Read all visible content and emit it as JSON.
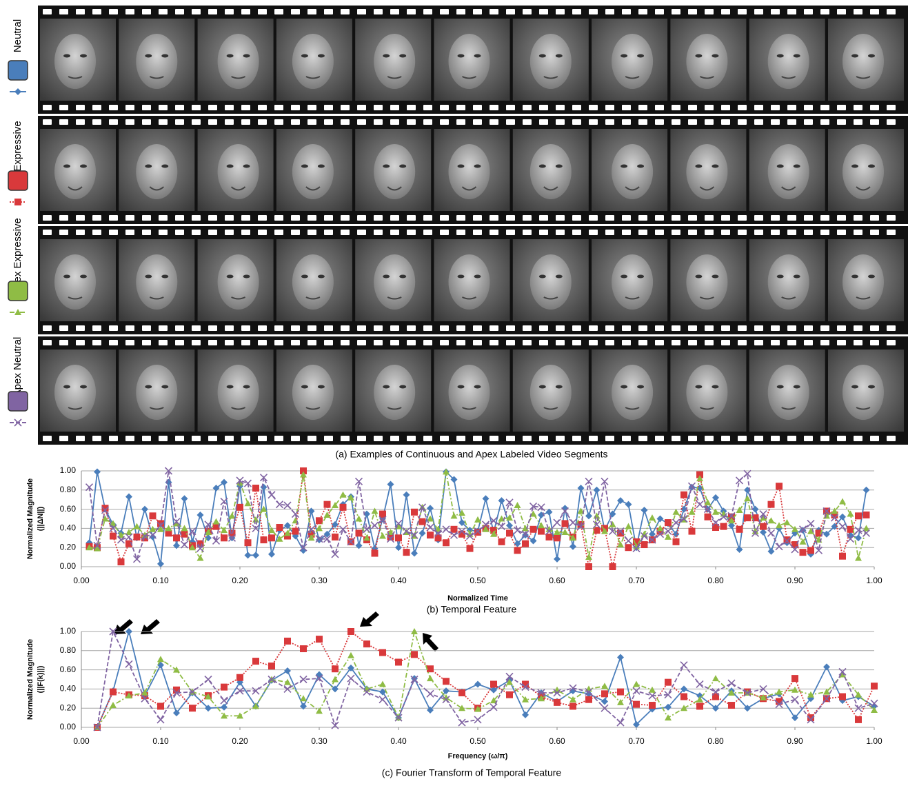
{
  "film_strip": {
    "caption": "(a) Examples of Continuous and Apex Labeled Video Segments"
  },
  "chart_data": [
    {
      "type": "line",
      "caption": "(b) Temporal Feature",
      "xlabel": "Normalized Time",
      "ylabel": "Normalized Magnitude",
      "ylabel2": "(||ΔN||)",
      "xlim": [
        0,
        1
      ],
      "ylim": [
        0,
        1
      ],
      "grid": true,
      "xticks": [
        {
          "value": 0,
          "label": "0.00"
        },
        {
          "value": 0.1,
          "label": "0.10"
        },
        {
          "value": 0.2,
          "label": "0.20"
        },
        {
          "value": 0.3,
          "label": "0.30"
        },
        {
          "value": 0.4,
          "label": "0.40"
        },
        {
          "value": 0.5,
          "label": "0.50"
        },
        {
          "value": 0.6,
          "label": "0.60"
        },
        {
          "value": 0.7,
          "label": "0.70"
        },
        {
          "value": 0.8,
          "label": "0.80"
        },
        {
          "value": 0.9,
          "label": "0.90"
        },
        {
          "value": 1,
          "label": "1.00"
        }
      ],
      "yticks": [
        {
          "value": 0,
          "label": "0.00"
        },
        {
          "value": 0.2,
          "label": "0.20"
        },
        {
          "value": 0.4,
          "label": "0.40"
        },
        {
          "value": 0.6,
          "label": "0.60"
        },
        {
          "value": 0.8,
          "label": "0.80"
        },
        {
          "value": 1,
          "label": "1.00"
        }
      ],
      "x": [
        0.01,
        0.02,
        0.03,
        0.04,
        0.05,
        0.06,
        0.07,
        0.08,
        0.09,
        0.1,
        0.11,
        0.12,
        0.13,
        0.14,
        0.15,
        0.16,
        0.17,
        0.18,
        0.19,
        0.2,
        0.21,
        0.22,
        0.23,
        0.24,
        0.25,
        0.26,
        0.27,
        0.28,
        0.29,
        0.3,
        0.31,
        0.32,
        0.33,
        0.34,
        0.35,
        0.36,
        0.37,
        0.38,
        0.39,
        0.4,
        0.41,
        0.42,
        0.43,
        0.44,
        0.45,
        0.46,
        0.47,
        0.48,
        0.49,
        0.5,
        0.51,
        0.52,
        0.53,
        0.54,
        0.55,
        0.56,
        0.57,
        0.58,
        0.59,
        0.6,
        0.61,
        0.62,
        0.63,
        0.64,
        0.65,
        0.66,
        0.67,
        0.68,
        0.69,
        0.7,
        0.71,
        0.72,
        0.73,
        0.74,
        0.75,
        0.76,
        0.77,
        0.78,
        0.79,
        0.8,
        0.81,
        0.82,
        0.83,
        0.84,
        0.85,
        0.86,
        0.87,
        0.88,
        0.89,
        0.9,
        0.91,
        0.92,
        0.93,
        0.94,
        0.95,
        0.96,
        0.97,
        0.98,
        0.99
      ],
      "series": [
        {
          "name": "Neutral",
          "color": "#4a7ebb",
          "marker": "diamond",
          "dash": "solid",
          "values": [
            0.25,
            0.99,
            0.6,
            0.44,
            0.35,
            0.73,
            0.3,
            0.6,
            0.31,
            0.03,
            0.88,
            0.22,
            0.71,
            0.26,
            0.54,
            0.3,
            0.82,
            0.88,
            0.3,
            0.84,
            0.12,
            0.12,
            0.83,
            0.13,
            0.38,
            0.43,
            0.32,
            0.17,
            0.58,
            0.28,
            0.34,
            0.44,
            0.65,
            0.73,
            0.22,
            0.55,
            0.19,
            0.5,
            0.86,
            0.2,
            0.75,
            0.14,
            0.35,
            0.61,
            0.28,
            0.99,
            0.91,
            0.46,
            0.38,
            0.37,
            0.71,
            0.36,
            0.69,
            0.43,
            0.24,
            0.33,
            0.27,
            0.54,
            0.57,
            0.08,
            0.61,
            0.21,
            0.82,
            0.53,
            0.8,
            0.38,
            0.55,
            0.69,
            0.65,
            0.2,
            0.59,
            0.34,
            0.5,
            0.45,
            0.34,
            0.6,
            0.83,
            0.82,
            0.6,
            0.72,
            0.58,
            0.43,
            0.18,
            0.8,
            0.6,
            0.36,
            0.16,
            0.4,
            0.25,
            0.35,
            0.38,
            0.13,
            0.38,
            0.34,
            0.42,
            0.52,
            0.33,
            0.3,
            0.8
          ]
        },
        {
          "name": "Expressive",
          "color": "#d9393b",
          "marker": "square",
          "dash": "dotted",
          "values": [
            0.21,
            0.2,
            0.61,
            0.32,
            0.05,
            0.24,
            0.31,
            0.3,
            0.53,
            0.45,
            0.35,
            0.3,
            0.34,
            0.22,
            0.24,
            0.37,
            0.42,
            0.3,
            0.35,
            0.62,
            0.25,
            0.82,
            0.28,
            0.3,
            0.41,
            0.32,
            0.37,
            1.0,
            0.34,
            0.48,
            0.65,
            0.31,
            0.62,
            0.26,
            0.35,
            0.28,
            0.14,
            0.55,
            0.31,
            0.3,
            0.15,
            0.57,
            0.47,
            0.33,
            0.3,
            0.25,
            0.39,
            0.34,
            0.19,
            0.36,
            0.4,
            0.38,
            0.26,
            0.35,
            0.17,
            0.24,
            0.39,
            0.37,
            0.31,
            0.3,
            0.45,
            0.31,
            0.44,
            0.0,
            0.38,
            0.4,
            0.0,
            0.35,
            0.2,
            0.26,
            0.23,
            0.28,
            0.37,
            0.46,
            0.26,
            0.75,
            0.37,
            0.96,
            0.52,
            0.41,
            0.42,
            0.52,
            0.39,
            0.51,
            0.51,
            0.42,
            0.65,
            0.84,
            0.28,
            0.23,
            0.15,
            0.17,
            0.35,
            0.58,
            0.54,
            0.11,
            0.39,
            0.53,
            0.54
          ]
        },
        {
          "name": "Apex Expressive",
          "color": "#8fbc45",
          "marker": "triangle",
          "dash": "dashdot",
          "values": [
            0.2,
            0.19,
            0.5,
            0.45,
            0.33,
            0.36,
            0.42,
            0.33,
            0.39,
            0.39,
            0.4,
            0.45,
            0.4,
            0.2,
            0.09,
            0.36,
            0.47,
            0.38,
            0.53,
            0.88,
            0.66,
            0.49,
            0.6,
            0.38,
            0.29,
            0.35,
            0.48,
            0.96,
            0.3,
            0.4,
            0.54,
            0.64,
            0.75,
            0.72,
            0.5,
            0.3,
            0.58,
            0.32,
            0.36,
            0.42,
            0.36,
            0.32,
            0.62,
            0.5,
            0.39,
            0.99,
            0.53,
            0.56,
            0.34,
            0.49,
            0.39,
            0.34,
            0.5,
            0.51,
            0.64,
            0.4,
            0.55,
            0.43,
            0.39,
            0.36,
            0.36,
            0.3,
            0.58,
            0.1,
            0.53,
            0.37,
            0.44,
            0.23,
            0.42,
            0.21,
            0.34,
            0.51,
            0.4,
            0.31,
            0.57,
            0.49,
            0.57,
            0.92,
            0.67,
            0.57,
            0.55,
            0.48,
            0.59,
            0.71,
            0.37,
            0.51,
            0.48,
            0.43,
            0.46,
            0.39,
            0.26,
            0.37,
            0.28,
            0.53,
            0.58,
            0.68,
            0.55,
            0.09,
            0.4
          ]
        },
        {
          "name": "Apex Neutral",
          "color": "#8064a2",
          "marker": "x",
          "dash": "dashed",
          "values": [
            0.83,
            0.22,
            0.59,
            0.4,
            0.28,
            0.31,
            0.08,
            0.32,
            0.33,
            0.43,
            1.0,
            0.47,
            0.23,
            0.37,
            0.19,
            0.44,
            0.27,
            0.68,
            0.3,
            0.9,
            0.87,
            0.4,
            0.93,
            0.75,
            0.65,
            0.64,
            0.55,
            0.2,
            0.39,
            0.29,
            0.29,
            0.13,
            0.39,
            0.26,
            0.89,
            0.39,
            0.43,
            0.49,
            0.29,
            0.45,
            0.37,
            0.33,
            0.62,
            0.41,
            0.35,
            0.39,
            0.33,
            0.37,
            0.32,
            0.37,
            0.44,
            0.48,
            0.42,
            0.67,
            0.38,
            0.34,
            0.63,
            0.62,
            0.37,
            0.46,
            0.58,
            0.46,
            0.42,
            0.89,
            0.44,
            0.89,
            0.37,
            0.37,
            0.27,
            0.19,
            0.32,
            0.28,
            0.34,
            0.37,
            0.46,
            0.5,
            0.84,
            0.65,
            0.6,
            0.46,
            0.52,
            0.53,
            0.9,
            0.97,
            0.35,
            0.55,
            0.35,
            0.21,
            0.27,
            0.18,
            0.39,
            0.45,
            0.17,
            0.58,
            0.51,
            0.42,
            0.29,
            0.38,
            0.35
          ]
        }
      ]
    },
    {
      "type": "line",
      "caption": "(c) Fourier Transform of Temporal Feature",
      "xlabel": "Frequency (ω/π)",
      "ylabel": "Normalized Magnitude",
      "ylabel2": "(||F(k)||)",
      "xlim": [
        0,
        1
      ],
      "ylim": [
        0,
        1
      ],
      "grid": true,
      "xticks": [
        {
          "value": 0,
          "label": "0.00"
        },
        {
          "value": 0.1,
          "label": "0.10"
        },
        {
          "value": 0.2,
          "label": "0.20"
        },
        {
          "value": 0.3,
          "label": "0.30"
        },
        {
          "value": 0.4,
          "label": "0.40"
        },
        {
          "value": 0.5,
          "label": "0.50"
        },
        {
          "value": 0.6,
          "label": "0.60"
        },
        {
          "value": 0.7,
          "label": "0.70"
        },
        {
          "value": 0.8,
          "label": "0.80"
        },
        {
          "value": 0.9,
          "label": "0.90"
        },
        {
          "value": 1,
          "label": "1.00"
        }
      ],
      "yticks": [
        {
          "value": 0,
          "label": "0.00"
        },
        {
          "value": 0.2,
          "label": "0.20"
        },
        {
          "value": 0.4,
          "label": "0.40"
        },
        {
          "value": 0.6,
          "label": "0.60"
        },
        {
          "value": 0.8,
          "label": "0.80"
        },
        {
          "value": 1,
          "label": "1.00"
        }
      ],
      "x": [
        0.02,
        0.04,
        0.06,
        0.08,
        0.1,
        0.12,
        0.14,
        0.16,
        0.18,
        0.2,
        0.22,
        0.24,
        0.26,
        0.28,
        0.3,
        0.32,
        0.34,
        0.36,
        0.38,
        0.4,
        0.42,
        0.44,
        0.46,
        0.48,
        0.5,
        0.52,
        0.54,
        0.56,
        0.58,
        0.6,
        0.62,
        0.64,
        0.66,
        0.68,
        0.7,
        0.72,
        0.74,
        0.76,
        0.78,
        0.8,
        0.82,
        0.84,
        0.86,
        0.88,
        0.9,
        0.92,
        0.94,
        0.96,
        0.98,
        1.0
      ],
      "series": [
        {
          "color": "#4a7ebb",
          "marker": "diamond",
          "dash": "solid",
          "values": [
            0,
            0.38,
            1.0,
            0.33,
            0.65,
            0.15,
            0.36,
            0.2,
            0.21,
            0.47,
            0.22,
            0.49,
            0.59,
            0.22,
            0.55,
            0.4,
            0.62,
            0.4,
            0.37,
            0.1,
            0.51,
            0.18,
            0.38,
            0.37,
            0.45,
            0.39,
            0.49,
            0.13,
            0.36,
            0.27,
            0.38,
            0.35,
            0.27,
            0.73,
            0.03,
            0.19,
            0.21,
            0.4,
            0.33,
            0.2,
            0.38,
            0.2,
            0.3,
            0.35,
            0.1,
            0.3,
            0.63,
            0.28,
            0.32,
            0.22
          ]
        },
        {
          "color": "#d9393b",
          "marker": "square",
          "dash": "dotted",
          "values": [
            0,
            0.37,
            0.34,
            0.33,
            0.22,
            0.39,
            0.2,
            0.33,
            0.42,
            0.52,
            0.69,
            0.64,
            0.9,
            0.82,
            0.92,
            0.61,
            1.0,
            0.87,
            0.78,
            0.68,
            0.76,
            0.61,
            0.48,
            0.36,
            0.2,
            0.45,
            0.34,
            0.45,
            0.32,
            0.26,
            0.22,
            0.29,
            0.35,
            0.37,
            0.24,
            0.23,
            0.47,
            0.32,
            0.22,
            0.32,
            0.23,
            0.37,
            0.3,
            0.27,
            0.51,
            0.1,
            0.3,
            0.32,
            0.08,
            0.43
          ]
        },
        {
          "color": "#8fbc45",
          "marker": "triangle",
          "dash": "dashdot",
          "values": [
            0,
            0.23,
            0.33,
            0.36,
            0.71,
            0.6,
            0.37,
            0.32,
            0.12,
            0.12,
            0.22,
            0.5,
            0.47,
            0.3,
            0.17,
            0.5,
            0.75,
            0.4,
            0.45,
            0.1,
            1.0,
            0.51,
            0.31,
            0.2,
            0.19,
            0.28,
            0.47,
            0.29,
            0.3,
            0.39,
            0.29,
            0.4,
            0.43,
            0.26,
            0.45,
            0.39,
            0.1,
            0.2,
            0.29,
            0.51,
            0.36,
            0.36,
            0.31,
            0.37,
            0.39,
            0.34,
            0.37,
            0.55,
            0.34,
            0.18
          ]
        },
        {
          "color": "#8064a2",
          "marker": "x",
          "dash": "dashed",
          "values": [
            0,
            1.0,
            0.66,
            0.3,
            0.08,
            0.36,
            0.37,
            0.5,
            0.28,
            0.38,
            0.38,
            0.5,
            0.4,
            0.5,
            0.51,
            0.02,
            0.51,
            0.37,
            0.29,
            0.1,
            0.5,
            0.35,
            0.29,
            0.05,
            0.08,
            0.21,
            0.53,
            0.42,
            0.36,
            0.36,
            0.41,
            0.37,
            0.2,
            0.05,
            0.38,
            0.33,
            0.34,
            0.65,
            0.45,
            0.37,
            0.46,
            0.36,
            0.4,
            0.24,
            0.29,
            0.08,
            0.3,
            0.58,
            0.2,
            0.25
          ]
        }
      ]
    }
  ]
}
